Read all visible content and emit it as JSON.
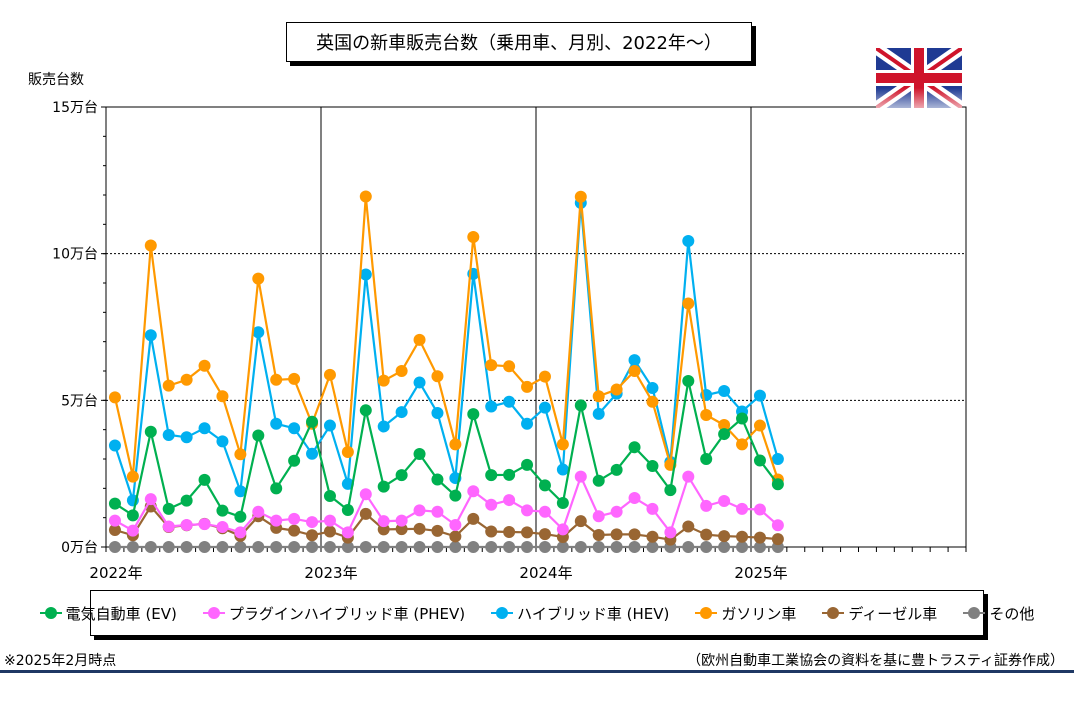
{
  "chart_data": {
    "type": "line",
    "title": "英国の新車販売台数（乗用車、月別、2022年～）",
    "ylabel": "販売台数",
    "ylim": [
      0,
      150000
    ],
    "y_ticks": [
      {
        "value": 0,
        "label": "0万台"
      },
      {
        "value": 50000,
        "label": "5万台"
      },
      {
        "value": 100000,
        "label": "10万台"
      },
      {
        "value": 150000,
        "label": "15万台"
      }
    ],
    "x_start": "2022-01",
    "x_total_months": 48,
    "x_ticks": [
      {
        "month_index": 0,
        "label": "2022年"
      },
      {
        "month_index": 12,
        "label": "2023年"
      },
      {
        "month_index": 24,
        "label": "2024年"
      },
      {
        "month_index": 36,
        "label": "2025年"
      }
    ],
    "grid": "horizontal dotted at 5万台 and 10万台; vertical at year boundaries",
    "legend_position": "bottom",
    "series": [
      {
        "name": "電気自動車 (EV)",
        "color": "#00b050",
        "values": [
          14800,
          10800,
          39300,
          13000,
          15800,
          22900,
          12400,
          10300,
          38000,
          20000,
          29400,
          42700,
          17400,
          12600,
          46600,
          20600,
          24500,
          31700,
          23000,
          17500,
          45300,
          24500,
          24600,
          28000,
          21000,
          15000,
          48300,
          22600,
          26300,
          34000,
          27600,
          19400,
          56600,
          30000,
          38500,
          43800,
          29500,
          21400
        ]
      },
      {
        "name": "プラグインハイブリッド車 (PHEV)",
        "color": "#ff66ff",
        "values": [
          9000,
          5600,
          16300,
          7000,
          7500,
          7800,
          6800,
          5000,
          12000,
          9000,
          9600,
          8500,
          9000,
          5000,
          18000,
          8800,
          9000,
          12500,
          12000,
          7500,
          19000,
          14400,
          16000,
          12500,
          12000,
          6000,
          24000,
          10500,
          12000,
          16700,
          13000,
          5000,
          24000,
          14000,
          15700,
          13000,
          12800,
          7400
        ]
      },
      {
        "name": "ハイブリッド車 (HEV)",
        "color": "#00b0f0",
        "values": [
          34600,
          15900,
          72200,
          38200,
          37400,
          40500,
          36000,
          19000,
          73200,
          42000,
          40500,
          31800,
          41400,
          21500,
          92900,
          41100,
          46000,
          56100,
          45700,
          23500,
          93100,
          47900,
          49500,
          42000,
          47500,
          26400,
          117300,
          45400,
          52300,
          63700,
          54200,
          29000,
          104300,
          51800,
          53200,
          46200,
          51600,
          30000
        ]
      },
      {
        "name": "ガソリン車",
        "color": "#ff9900",
        "values": [
          51000,
          24000,
          102800,
          55000,
          57000,
          61800,
          51400,
          31600,
          91500,
          57000,
          57300,
          42000,
          58700,
          32400,
          119500,
          56700,
          60000,
          70600,
          58200,
          35000,
          105700,
          62000,
          61600,
          54600,
          58100,
          35000,
          119400,
          51400,
          53700,
          60000,
          49500,
          28000,
          83000,
          45000,
          41600,
          35000,
          41400,
          23000
        ]
      },
      {
        "name": "ディーゼル車",
        "color": "#996633",
        "values": [
          5800,
          4000,
          13800,
          6800,
          7400,
          7900,
          6400,
          3800,
          10500,
          6500,
          5600,
          4000,
          5300,
          3200,
          11300,
          6000,
          6100,
          6200,
          5500,
          3600,
          9600,
          5300,
          5100,
          5000,
          4400,
          3400,
          8800,
          4100,
          4300,
          4300,
          3500,
          2500,
          7000,
          4200,
          3700,
          3500,
          3200,
          2700
        ]
      },
      {
        "name": "その他",
        "color": "#808080",
        "values": [
          0,
          0,
          0,
          0,
          0,
          0,
          0,
          0,
          0,
          0,
          0,
          0,
          0,
          0,
          0,
          0,
          0,
          0,
          0,
          0,
          0,
          0,
          0,
          0,
          0,
          0,
          0,
          0,
          0,
          0,
          0,
          0,
          0,
          0,
          0,
          0,
          0,
          0
        ]
      }
    ]
  },
  "note": "※2025年2月時点",
  "source": "（欧州自動車工業協会の資料を基に豊トラスティ証券作成）"
}
